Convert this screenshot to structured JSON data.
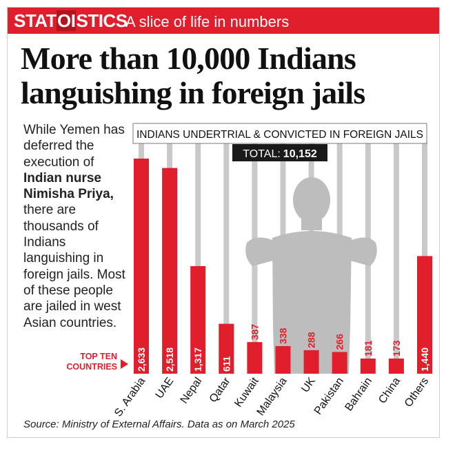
{
  "header": {
    "brand_prefix": "STAT",
    "brand_mid": "OI",
    "brand_suffix": "STICS",
    "tagline": "A slice of life in numbers"
  },
  "headline_line1": "More than 10,000 Indians",
  "headline_line2": "languishing in foreign jails",
  "intro": {
    "part1": "While Yemen has deferred the execution of ",
    "bold": "Indian nurse Nimisha Priya,",
    "part2": " there are thousands of Indians languishing in foreign jails. Most of these people are jailed in west Asian countries."
  },
  "source": "Source: Ministry of External Affairs. Data as on March 2025",
  "colors": {
    "accent": "#e11f2c",
    "bar": "#e11f2c",
    "bars_bg": "#c9c9c9",
    "silhouette": "#bdbdbd"
  },
  "chart_data": {
    "type": "bar",
    "title": "INDIANS UNDERTRIAL & CONVICTED IN FOREIGN JAILS",
    "total_label": "TOTAL:",
    "total_value": "10,152",
    "side_label_line1": "TOP TEN",
    "side_label_line2": "COUNTRIES",
    "categories": [
      "S. Arabia",
      "UAE",
      "Nepal",
      "Qatar",
      "Kuwait",
      "Malaysia",
      "UK",
      "Pakistan",
      "Bahrain",
      "China",
      "Others"
    ],
    "values": [
      2633,
      2518,
      1317,
      611,
      387,
      338,
      288,
      266,
      181,
      173,
      1440
    ],
    "value_labels": [
      "2,633",
      "2,518",
      "1,317",
      "611",
      "387",
      "338",
      "288",
      "266",
      "181",
      "173",
      "1,440"
    ],
    "ylim": [
      0,
      2633
    ]
  }
}
